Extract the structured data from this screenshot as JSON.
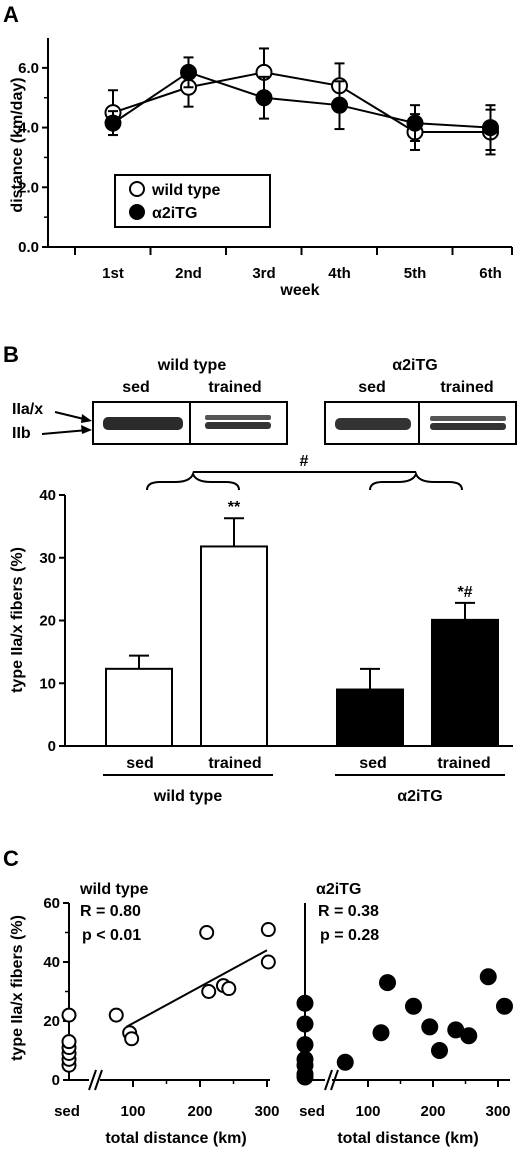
{
  "panels": {
    "a": "A",
    "b": "B",
    "c": "C"
  },
  "chart_data": [
    {
      "type": "line",
      "ylabel": "distance (km/day)",
      "xlabel": "week",
      "categories": [
        "1st",
        "2nd",
        "3rd",
        "4th",
        "5th",
        "6th"
      ],
      "ylim": [
        0,
        7
      ],
      "yticks": [
        "0.0",
        "2.0",
        "4.0",
        "6.0"
      ],
      "legend_position": "lower-left",
      "series": [
        {
          "name": "wild type",
          "marker": "open-circle",
          "values": [
            4.5,
            5.35,
            5.85,
            5.4,
            3.85,
            3.85
          ],
          "errors": [
            0.75,
            0.65,
            0.8,
            0.75,
            0.6,
            0.75
          ]
        },
        {
          "name": "α2iTG",
          "marker": "filled-circle",
          "values": [
            4.15,
            5.85,
            5.0,
            4.75,
            4.15,
            4.0
          ],
          "errors": [
            0.4,
            0.5,
            0.7,
            0.8,
            0.6,
            0.75
          ]
        }
      ]
    },
    {
      "type": "bar",
      "ylabel": "type IIa/x fibers (%)",
      "ylim": [
        0,
        40
      ],
      "yticks": [
        "0",
        "10",
        "20",
        "30",
        "40"
      ],
      "categories": [
        "sed",
        "trained",
        "sed",
        "trained"
      ],
      "groups": [
        "wild type",
        "α2iTG"
      ],
      "values": [
        12.3,
        31.8,
        9.0,
        20.1
      ],
      "errors": [
        2.1,
        4.5,
        3.3,
        2.7
      ],
      "fills": [
        "#ffffff",
        "#ffffff",
        "#000000",
        "#000000"
      ],
      "annotations": [
        "",
        "**",
        "",
        "*#"
      ],
      "group_annotation": "#",
      "blot": {
        "groups": [
          "wild type",
          "α2iTG"
        ],
        "lanes": [
          "sed",
          "trained"
        ],
        "bands": [
          "IIa/x",
          "IIb"
        ]
      }
    },
    {
      "type": "scatter",
      "ylabel": "type IIa/x fibers (%)",
      "ylim": [
        0,
        60
      ],
      "yticks": [
        "0",
        "20",
        "40",
        "60"
      ],
      "plots": [
        {
          "title": "wild type",
          "xlabel": "total distance (km)",
          "xticks": [
            "sed",
            "100",
            "200",
            "300"
          ],
          "stats": [
            "R = 0.80",
            "p < 0.01"
          ],
          "marker": "open-circle",
          "sed_points": [
            5,
            7,
            9,
            11,
            13,
            22
          ],
          "points": [
            [
              75,
              22
            ],
            [
              95,
              16
            ],
            [
              98,
              14
            ],
            [
              210,
              50
            ],
            [
              213,
              30
            ],
            [
              235,
              32
            ],
            [
              243,
              31
            ],
            [
              302,
              51
            ],
            [
              302,
              40
            ]
          ],
          "fit": [
            [
              90,
              18
            ],
            [
              300,
              44
            ]
          ]
        },
        {
          "title": "α2iTG",
          "xlabel": "total distance (km)",
          "xticks": [
            "sed",
            "100",
            "200",
            "300"
          ],
          "stats": [
            "R = 0.38",
            "p = 0.28"
          ],
          "marker": "filled-circle",
          "sed_points": [
            1,
            2,
            5,
            7,
            12,
            19,
            26
          ],
          "points": [
            [
              65,
              6
            ],
            [
              120,
              16
            ],
            [
              130,
              33
            ],
            [
              170,
              25
            ],
            [
              195,
              18
            ],
            [
              210,
              10
            ],
            [
              235,
              17
            ],
            [
              255,
              15
            ],
            [
              285,
              35
            ],
            [
              310,
              25
            ]
          ]
        }
      ]
    }
  ]
}
